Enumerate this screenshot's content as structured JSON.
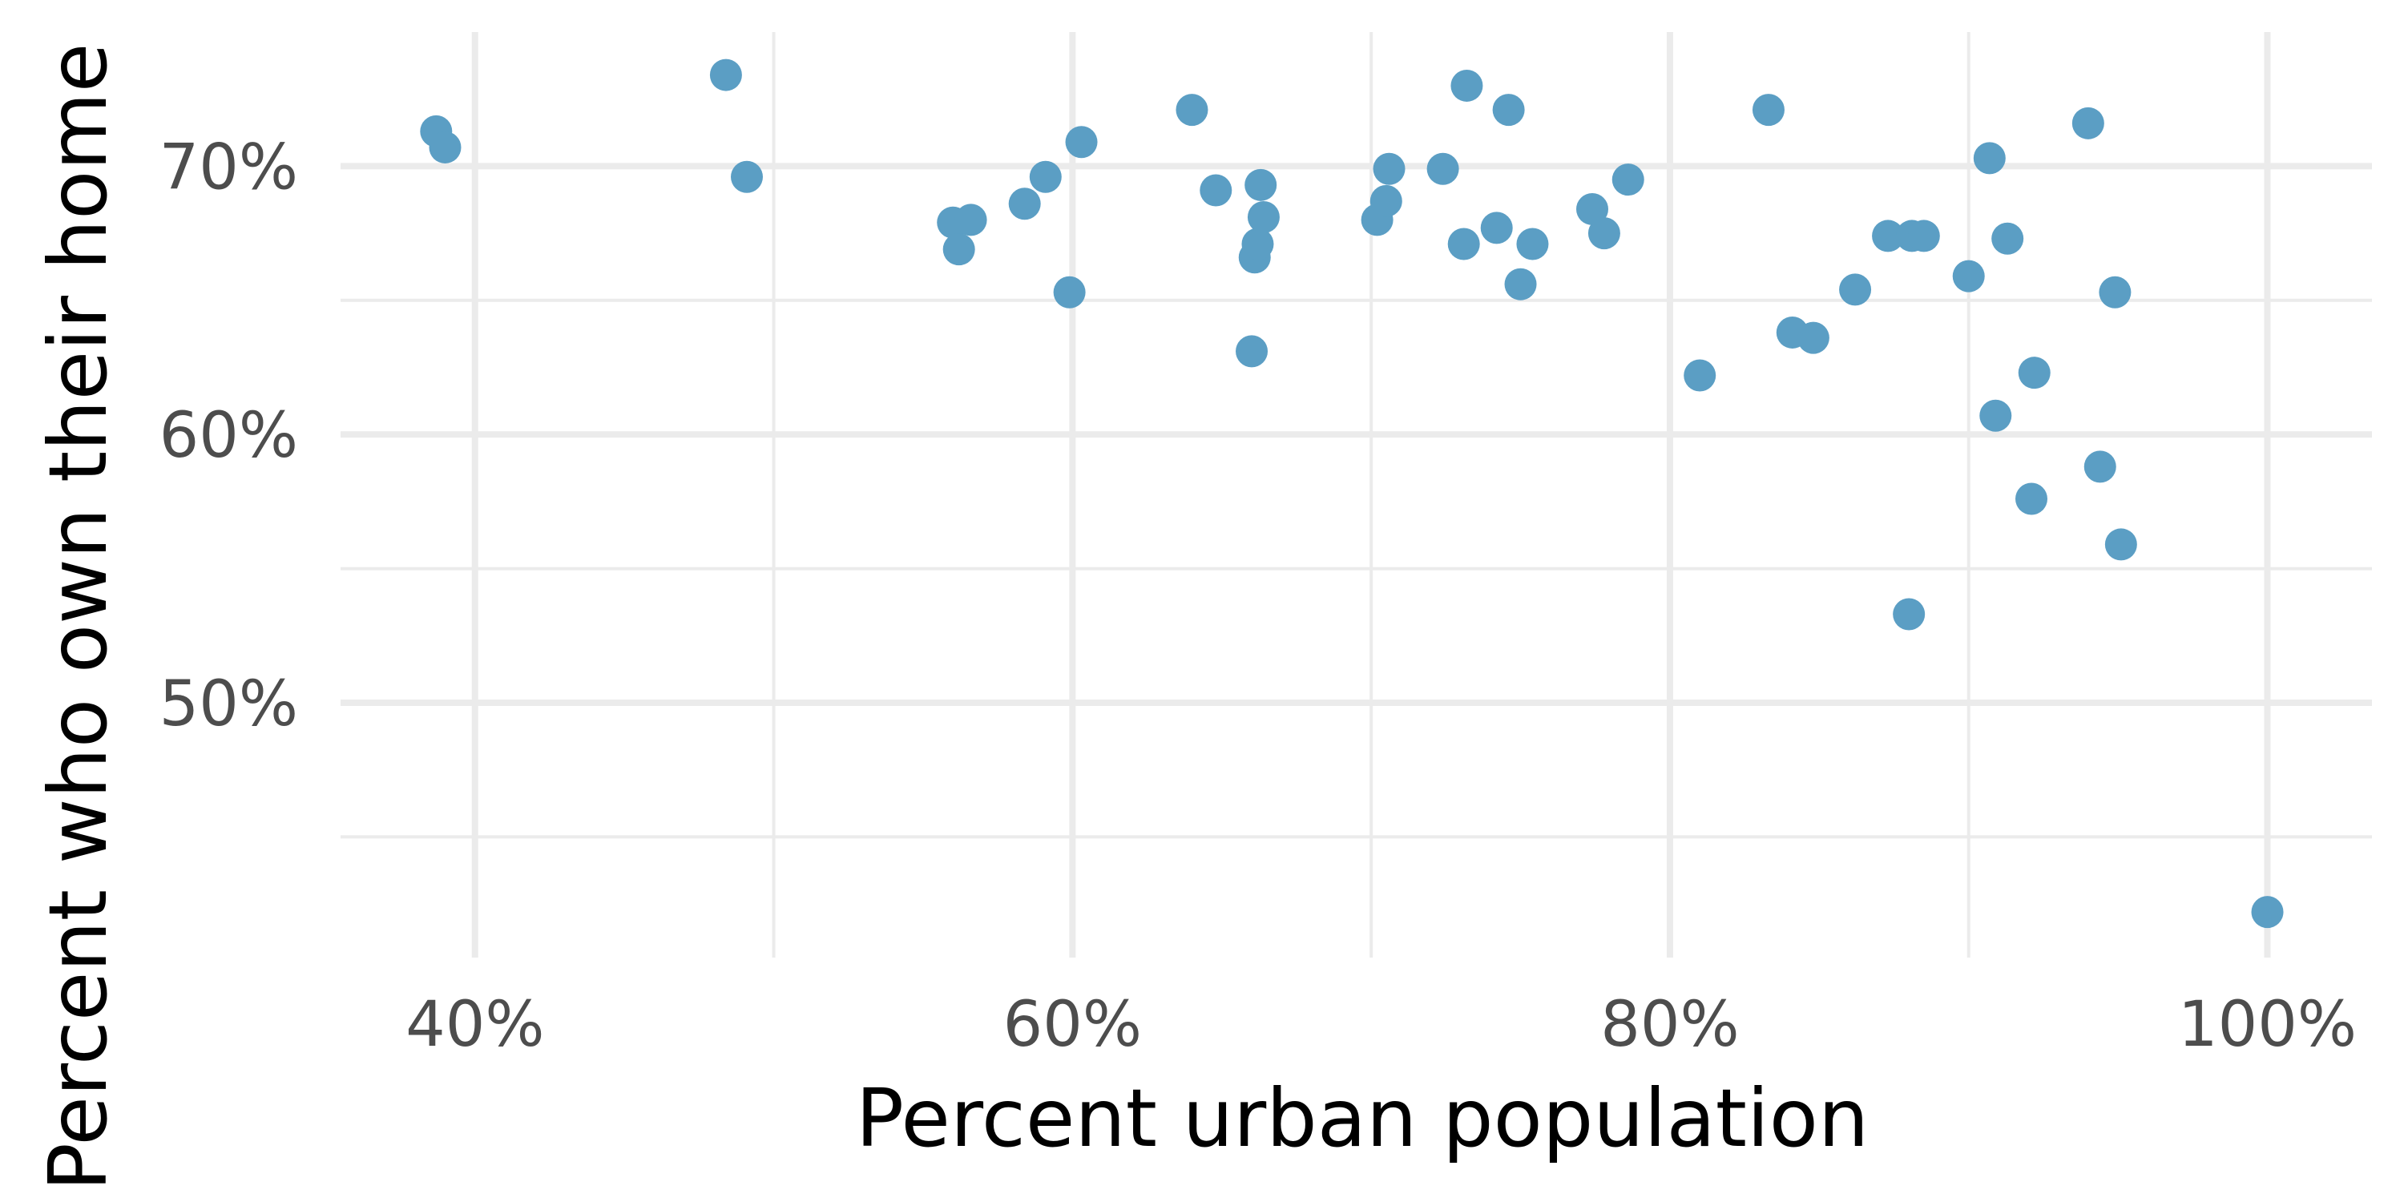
{
  "chart_data": {
    "type": "scatter",
    "title": "",
    "xlabel": "Percent urban population",
    "ylabel": "Percent who own their home",
    "xlim": [
      35.5,
      103.5
    ],
    "ylim": [
      40.5,
      75.0
    ],
    "x_ticks": [
      {
        "value": 40,
        "label": "40%"
      },
      {
        "value": 60,
        "label": "60%"
      },
      {
        "value": 80,
        "label": "80%"
      },
      {
        "value": 100,
        "label": "100%"
      }
    ],
    "y_ticks": [
      {
        "value": 50,
        "label": "50%"
      },
      {
        "value": 60,
        "label": "60%"
      },
      {
        "value": 70,
        "label": "70%"
      }
    ],
    "x_minor": [
      50,
      70,
      90
    ],
    "y_minor": [
      45,
      55,
      65
    ],
    "grid": true,
    "point_color": "#5b9ec4",
    "points": [
      {
        "x": 38.7,
        "y": 71.3
      },
      {
        "x": 39.0,
        "y": 70.7
      },
      {
        "x": 48.4,
        "y": 73.4
      },
      {
        "x": 49.1,
        "y": 69.6
      },
      {
        "x": 56.0,
        "y": 67.9
      },
      {
        "x": 56.2,
        "y": 66.9
      },
      {
        "x": 56.6,
        "y": 68.0
      },
      {
        "x": 58.4,
        "y": 68.6
      },
      {
        "x": 59.1,
        "y": 69.6
      },
      {
        "x": 59.9,
        "y": 65.3
      },
      {
        "x": 60.3,
        "y": 70.9
      },
      {
        "x": 64.0,
        "y": 72.1
      },
      {
        "x": 64.8,
        "y": 69.1
      },
      {
        "x": 66.0,
        "y": 63.1
      },
      {
        "x": 66.1,
        "y": 66.6
      },
      {
        "x": 66.2,
        "y": 67.1
      },
      {
        "x": 66.3,
        "y": 69.3
      },
      {
        "x": 66.4,
        "y": 68.1
      },
      {
        "x": 70.2,
        "y": 68.0
      },
      {
        "x": 70.5,
        "y": 68.7
      },
      {
        "x": 70.6,
        "y": 69.9
      },
      {
        "x": 72.4,
        "y": 69.9
      },
      {
        "x": 73.1,
        "y": 67.1
      },
      {
        "x": 73.2,
        "y": 73.0
      },
      {
        "x": 74.2,
        "y": 67.7
      },
      {
        "x": 74.6,
        "y": 72.1
      },
      {
        "x": 75.0,
        "y": 65.6
      },
      {
        "x": 75.4,
        "y": 67.1
      },
      {
        "x": 77.4,
        "y": 68.4
      },
      {
        "x": 77.8,
        "y": 67.5
      },
      {
        "x": 78.6,
        "y": 69.5
      },
      {
        "x": 81.0,
        "y": 62.2
      },
      {
        "x": 83.3,
        "y": 72.1
      },
      {
        "x": 84.1,
        "y": 63.8
      },
      {
        "x": 84.8,
        "y": 63.6
      },
      {
        "x": 86.2,
        "y": 65.4
      },
      {
        "x": 87.3,
        "y": 67.4
      },
      {
        "x": 88.0,
        "y": 53.3
      },
      {
        "x": 88.1,
        "y": 67.4
      },
      {
        "x": 88.5,
        "y": 67.4
      },
      {
        "x": 90.0,
        "y": 65.9
      },
      {
        "x": 90.7,
        "y": 70.3
      },
      {
        "x": 90.9,
        "y": 60.7
      },
      {
        "x": 91.3,
        "y": 67.3
      },
      {
        "x": 92.1,
        "y": 57.6
      },
      {
        "x": 92.2,
        "y": 62.3
      },
      {
        "x": 94.0,
        "y": 71.6
      },
      {
        "x": 94.4,
        "y": 58.8
      },
      {
        "x": 94.9,
        "y": 65.3
      },
      {
        "x": 95.1,
        "y": 55.9
      },
      {
        "x": 100.0,
        "y": 42.2
      }
    ]
  }
}
